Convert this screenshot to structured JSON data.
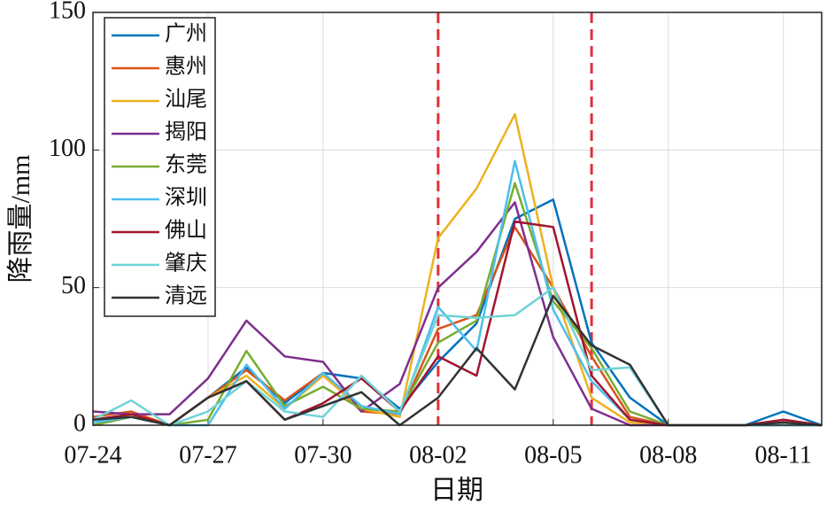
{
  "chart_data": {
    "type": "line",
    "xlabel": "日期",
    "ylabel": "降雨量/mm",
    "categories": [
      "07-24",
      null,
      null,
      "07-27",
      null,
      null,
      "07-30",
      null,
      null,
      "08-02",
      null,
      null,
      "08-05",
      null,
      null,
      "08-08",
      null,
      null,
      "08-11",
      null
    ],
    "ylim": [
      0,
      150
    ],
    "yticks": [
      0,
      50,
      100,
      150
    ],
    "grid": true,
    "legend": "upper left",
    "marker_lines": {
      "indices": [
        9,
        13
      ],
      "color": "#e0303a"
    },
    "series": [
      {
        "name": "广州",
        "color": "#0072BD",
        "values": [
          2,
          3,
          0,
          10,
          21,
          8,
          19,
          17,
          6,
          23,
          37,
          75,
          82,
          30,
          10,
          0,
          0,
          0,
          5,
          0
        ]
      },
      {
        "name": "惠州",
        "color": "#D95319",
        "values": [
          3,
          5,
          0,
          10,
          20,
          9,
          19,
          5,
          4,
          35,
          40,
          72,
          50,
          25,
          3,
          0,
          0,
          0,
          2,
          0
        ]
      },
      {
        "name": "汕尾",
        "color": "#EDB120",
        "values": [
          0,
          4,
          0,
          10,
          18,
          6,
          18,
          6,
          3,
          68,
          86,
          113,
          50,
          10,
          1,
          0,
          0,
          0,
          1,
          0
        ]
      },
      {
        "name": "揭阳",
        "color": "#7E2F8E",
        "values": [
          5,
          4,
          4,
          17,
          38,
          25,
          23,
          5,
          15,
          50,
          63,
          81,
          32,
          6,
          0,
          0,
          0,
          0,
          0,
          0
        ]
      },
      {
        "name": "东莞",
        "color": "#77AC30",
        "values": [
          0,
          3,
          0,
          2,
          27,
          7,
          14,
          6,
          5,
          30,
          38,
          88,
          45,
          28,
          5,
          0,
          0,
          0,
          0,
          0
        ]
      },
      {
        "name": "深圳",
        "color": "#4DBEEE",
        "values": [
          1,
          3,
          0,
          0,
          22,
          6,
          19,
          7,
          4,
          43,
          27,
          96,
          42,
          16,
          2,
          0,
          0,
          0,
          0,
          0
        ]
      },
      {
        "name": "佛山",
        "color": "#A2142F",
        "values": [
          2,
          4,
          0,
          10,
          16,
          2,
          8,
          17,
          5,
          25,
          18,
          74,
          72,
          18,
          2,
          0,
          0,
          0,
          2,
          0
        ]
      },
      {
        "name": "肇庆",
        "color": "#6FD3D6",
        "values": [
          2,
          9,
          0,
          5,
          16,
          5,
          3,
          18,
          5,
          40,
          39,
          40,
          50,
          20,
          21,
          0,
          0,
          0,
          0,
          0
        ]
      },
      {
        "name": "清远",
        "color": "#333333",
        "values": [
          2,
          3,
          0,
          10,
          16,
          2,
          7,
          12,
          0,
          10,
          28,
          13,
          47,
          29,
          22,
          0,
          0,
          0,
          1,
          0
        ]
      }
    ]
  }
}
